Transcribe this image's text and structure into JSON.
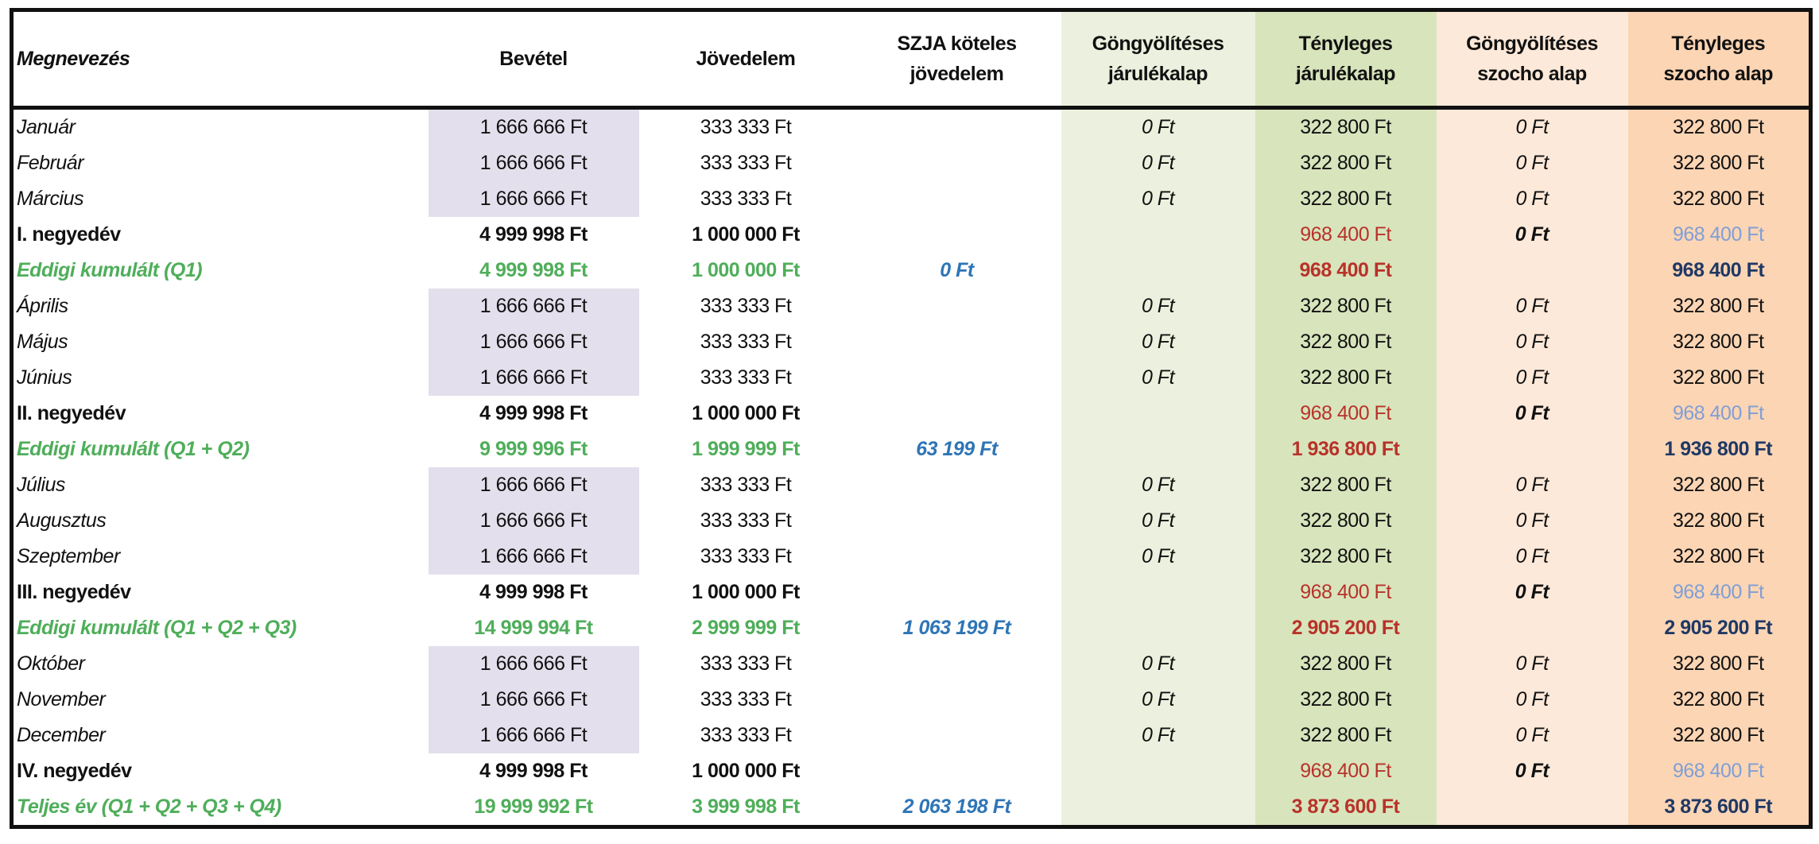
{
  "headers": [
    "Megnevezés",
    "Bevétel",
    "Jövedelem",
    "SZJA köteles\njövedelem",
    "Göngyölítéses\njárulékalap",
    "Tényleges\njárulékalap",
    "Göngyölítéses\nszocho alap",
    "Tényleges\nszocho alap"
  ],
  "colors": {
    "bevetel_fill": "#e4dfec",
    "gj_fill": "#ebf1de",
    "tj_fill": "#d8e4bc",
    "gs_fill": "#fde9d9",
    "ts_fill": "#fcd5b4",
    "green": "#4fae5a",
    "blue": "#2e75b6",
    "red": "#b8322a",
    "light_blue": "#7f9fd6",
    "navy": "#1f3864"
  },
  "rows": [
    {
      "type": "month",
      "cells": [
        "Január",
        "1 666 666 Ft",
        "333 333 Ft",
        "",
        "0 Ft",
        "322 800 Ft",
        "0 Ft",
        "322 800 Ft"
      ]
    },
    {
      "type": "month",
      "cells": [
        "Február",
        "1 666 666 Ft",
        "333 333 Ft",
        "",
        "0 Ft",
        "322 800 Ft",
        "0 Ft",
        "322 800 Ft"
      ]
    },
    {
      "type": "month",
      "cells": [
        "Március",
        "1 666 666 Ft",
        "333 333 Ft",
        "",
        "0 Ft",
        "322 800 Ft",
        "0 Ft",
        "322 800 Ft"
      ]
    },
    {
      "type": "quarter",
      "cells": [
        "I. negyedév",
        "4 999 998 Ft",
        "1 000 000 Ft",
        "",
        "",
        "968 400 Ft",
        "0 Ft",
        "968 400 Ft"
      ]
    },
    {
      "type": "cumul",
      "cells": [
        "Eddigi kumulált (Q1)",
        "4 999 998 Ft",
        "1 000 000 Ft",
        "0 Ft",
        "",
        "968 400 Ft",
        "",
        "968 400 Ft"
      ]
    },
    {
      "type": "month",
      "cells": [
        "Április",
        "1 666 666 Ft",
        "333 333 Ft",
        "",
        "0 Ft",
        "322 800 Ft",
        "0 Ft",
        "322 800 Ft"
      ]
    },
    {
      "type": "month",
      "cells": [
        "Május",
        "1 666 666 Ft",
        "333 333 Ft",
        "",
        "0 Ft",
        "322 800 Ft",
        "0 Ft",
        "322 800 Ft"
      ]
    },
    {
      "type": "month",
      "cells": [
        "Június",
        "1 666 666 Ft",
        "333 333 Ft",
        "",
        "0 Ft",
        "322 800 Ft",
        "0 Ft",
        "322 800 Ft"
      ]
    },
    {
      "type": "quarter",
      "cells": [
        "II. negyedév",
        "4 999 998 Ft",
        "1 000 000 Ft",
        "",
        "",
        "968 400 Ft",
        "0 Ft",
        "968 400 Ft"
      ]
    },
    {
      "type": "cumul",
      "cells": [
        "Eddigi kumulált (Q1 + Q2)",
        "9 999 996 Ft",
        "1 999 999 Ft",
        "63 199 Ft",
        "",
        "1 936 800 Ft",
        "",
        "1 936 800 Ft"
      ]
    },
    {
      "type": "month",
      "cells": [
        "Július",
        "1 666 666 Ft",
        "333 333 Ft",
        "",
        "0 Ft",
        "322 800 Ft",
        "0 Ft",
        "322 800 Ft"
      ]
    },
    {
      "type": "month",
      "cells": [
        "Augusztus",
        "1 666 666 Ft",
        "333 333 Ft",
        "",
        "0 Ft",
        "322 800 Ft",
        "0 Ft",
        "322 800 Ft"
      ]
    },
    {
      "type": "month",
      "cells": [
        "Szeptember",
        "1 666 666 Ft",
        "333 333 Ft",
        "",
        "0 Ft",
        "322 800 Ft",
        "0 Ft",
        "322 800 Ft"
      ]
    },
    {
      "type": "quarter",
      "cells": [
        "III. negyedév",
        "4 999 998 Ft",
        "1 000 000 Ft",
        "",
        "",
        "968 400 Ft",
        "0 Ft",
        "968 400 Ft"
      ]
    },
    {
      "type": "cumul",
      "cells": [
        "Eddigi kumulált (Q1 + Q2 + Q3)",
        "14 999 994 Ft",
        "2 999 999 Ft",
        "1 063 199 Ft",
        "",
        "2 905 200 Ft",
        "",
        "2 905 200 Ft"
      ]
    },
    {
      "type": "month",
      "cells": [
        "Október",
        "1 666 666 Ft",
        "333 333 Ft",
        "",
        "0 Ft",
        "322 800 Ft",
        "0 Ft",
        "322 800 Ft"
      ]
    },
    {
      "type": "month",
      "cells": [
        "November",
        "1 666 666 Ft",
        "333 333 Ft",
        "",
        "0 Ft",
        "322 800 Ft",
        "0 Ft",
        "322 800 Ft"
      ]
    },
    {
      "type": "month",
      "cells": [
        "December",
        "1 666 666 Ft",
        "333 333 Ft",
        "",
        "0 Ft",
        "322 800 Ft",
        "0 Ft",
        "322 800 Ft"
      ]
    },
    {
      "type": "quarter",
      "cells": [
        "IV. negyedév",
        "4 999 998 Ft",
        "1 000 000 Ft",
        "",
        "",
        "968 400 Ft",
        "0 Ft",
        "968 400 Ft"
      ]
    },
    {
      "type": "cumul",
      "cells": [
        "Teljes év (Q1 + Q2 + Q3 + Q4)",
        "19 999 992 Ft",
        "3 999 998 Ft",
        "2 063 198 Ft",
        "",
        "3 873 600 Ft",
        "",
        "3 873 600 Ft"
      ]
    }
  ]
}
